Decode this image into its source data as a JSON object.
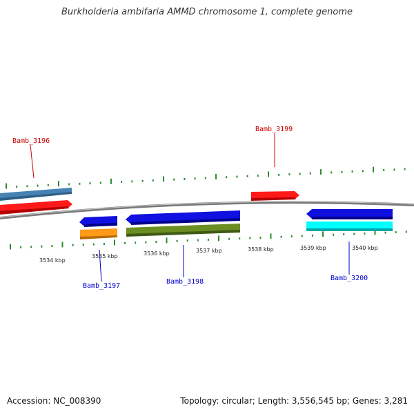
{
  "title": "Burkholderia ambifaria AMMD chromosome 1, complete genome",
  "footer": {
    "accession": "Accession: NC_008390",
    "topology": "Topology: circular; Length: 3,556,545 bp; Genes: 3,281"
  },
  "colors": {
    "backbone": "#8a8a8a",
    "tick": "#2e8b2e",
    "forward_label": "#cc0000",
    "reverse_label": "#0000cc"
  },
  "scale_labels": [
    "3534 kbp",
    "3535 kbp",
    "3536 kbp",
    "3537 kbp",
    "3538 kbp",
    "3539 kbp",
    "3540 kbp"
  ],
  "gene_labels": [
    {
      "text": "Bamb_3196",
      "strand": "forward"
    },
    {
      "text": "Bamb_3199",
      "strand": "forward"
    },
    {
      "text": "Bamb_3197",
      "strand": "reverse"
    },
    {
      "text": "Bamb_3198",
      "strand": "reverse"
    },
    {
      "text": "Bamb_3200",
      "strand": "reverse"
    }
  ],
  "features": [
    {
      "name": "steelblue-feature",
      "color": "#4682b4"
    },
    {
      "name": "red-feature-3196",
      "color": "#ff1a1a"
    },
    {
      "name": "red-feature-3199",
      "color": "#ff1a1a"
    },
    {
      "name": "blue-feature-3197",
      "color": "#1010e0"
    },
    {
      "name": "orange-feature-3197",
      "color": "#ff9a1a"
    },
    {
      "name": "blue-feature-3198",
      "color": "#1010e0"
    },
    {
      "name": "olive-feature-3198",
      "color": "#6b8e23"
    },
    {
      "name": "blue-feature-3200",
      "color": "#1010e0"
    },
    {
      "name": "cyan-feature-3200",
      "color": "#00ffff"
    }
  ]
}
